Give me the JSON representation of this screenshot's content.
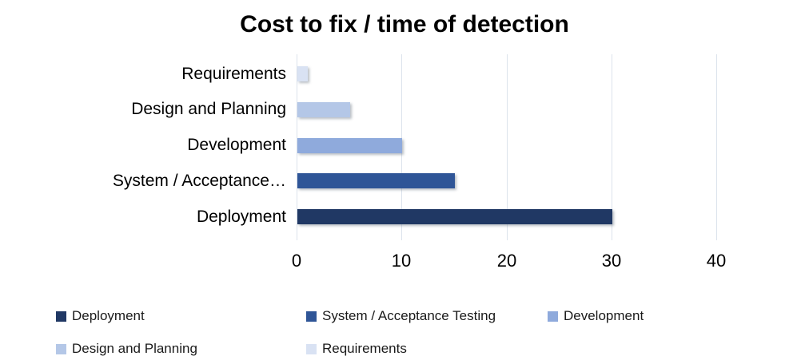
{
  "title": "Cost to fix / time of detection",
  "chart_data": {
    "type": "bar",
    "orientation": "horizontal",
    "title": "Cost to fix / time of detection",
    "categories": [
      "Requirements",
      "Design and Planning",
      "Development",
      "System / Acceptance…",
      "Deployment"
    ],
    "values": [
      1,
      5,
      10,
      15,
      30
    ],
    "bar_colors": [
      "#d9e2f3",
      "#b4c7e7",
      "#8faadc",
      "#2f5597",
      "#203864"
    ],
    "xlim": [
      0,
      40
    ],
    "x_ticks": [
      "0",
      "10",
      "20",
      "30",
      "40"
    ],
    "x_tick_values": [
      0,
      10,
      20,
      30,
      40
    ],
    "xlabel": "",
    "ylabel": "",
    "grid": true,
    "legend_position": "bottom",
    "legend": [
      {
        "label": "Deployment",
        "color": "#203864"
      },
      {
        "label": "System / Acceptance Testing",
        "color": "#2f5597"
      },
      {
        "label": "Development",
        "color": "#8faadc"
      },
      {
        "label": "Design and Planning",
        "color": "#b4c7e7"
      },
      {
        "label": "Requirements",
        "color": "#d9e2f3"
      }
    ]
  },
  "colors": {
    "gridline": "#dce3ec",
    "title_text": "#000000",
    "axis_text": "#000000",
    "legend_text": "#1a1a1a",
    "background": "#ffffff"
  }
}
